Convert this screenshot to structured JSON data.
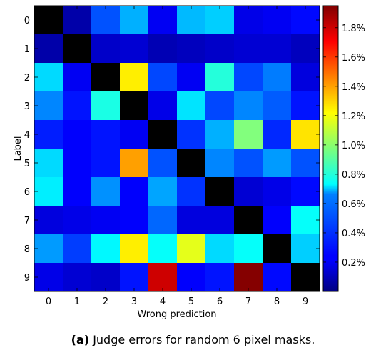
{
  "caption": {
    "tag": "(a)",
    "text": "Judge errors for random 6 pixel masks."
  },
  "chart_data": {
    "type": "heatmap",
    "xlabel": "Wrong prediction",
    "ylabel": "Label",
    "x_categories": [
      "0",
      "1",
      "2",
      "3",
      "4",
      "5",
      "6",
      "7",
      "8",
      "9"
    ],
    "y_categories": [
      "0",
      "1",
      "2",
      "3",
      "4",
      "5",
      "6",
      "7",
      "8",
      "9"
    ],
    "colormap": "jet",
    "diagonal_color": "#000000",
    "value_unit": "%",
    "vmin": 0.0,
    "vmax": 1.95,
    "values": [
      [
        null,
        0.08,
        0.4,
        0.58,
        0.22,
        0.6,
        0.64,
        0.2,
        0.22,
        0.26
      ],
      [
        0.08,
        null,
        0.14,
        0.16,
        0.1,
        0.12,
        0.14,
        0.16,
        0.16,
        0.12
      ],
      [
        0.66,
        0.22,
        null,
        1.25,
        0.38,
        0.22,
        0.8,
        0.38,
        0.48,
        0.18
      ],
      [
        0.5,
        0.28,
        0.78,
        null,
        0.2,
        0.68,
        0.38,
        0.5,
        0.42,
        0.28
      ],
      [
        0.3,
        0.24,
        0.28,
        0.22,
        null,
        0.34,
        0.58,
        0.98,
        0.32,
        1.27
      ],
      [
        0.66,
        0.24,
        0.28,
        1.4,
        0.4,
        null,
        0.5,
        0.4,
        0.54,
        0.4
      ],
      [
        0.7,
        0.24,
        0.52,
        0.24,
        0.56,
        0.34,
        null,
        0.16,
        0.2,
        0.26
      ],
      [
        0.18,
        0.2,
        0.22,
        0.24,
        0.44,
        0.18,
        0.18,
        null,
        0.24,
        0.74
      ],
      [
        0.54,
        0.36,
        0.72,
        1.25,
        0.74,
        1.17,
        0.66,
        0.74,
        null,
        0.64
      ],
      [
        0.2,
        0.16,
        0.14,
        0.28,
        1.8,
        0.24,
        0.28,
        1.94,
        0.26,
        null
      ]
    ],
    "colorbar": {
      "ticks": [
        0.2,
        0.4,
        0.6,
        0.8,
        1.0,
        1.2,
        1.4,
        1.6,
        1.8
      ],
      "tick_labels": [
        "0.2%",
        "0.4%",
        "0.6%",
        "0.8%",
        "1.0%",
        "1.2%",
        "1.4%",
        "1.6%",
        "1.8%"
      ]
    }
  }
}
